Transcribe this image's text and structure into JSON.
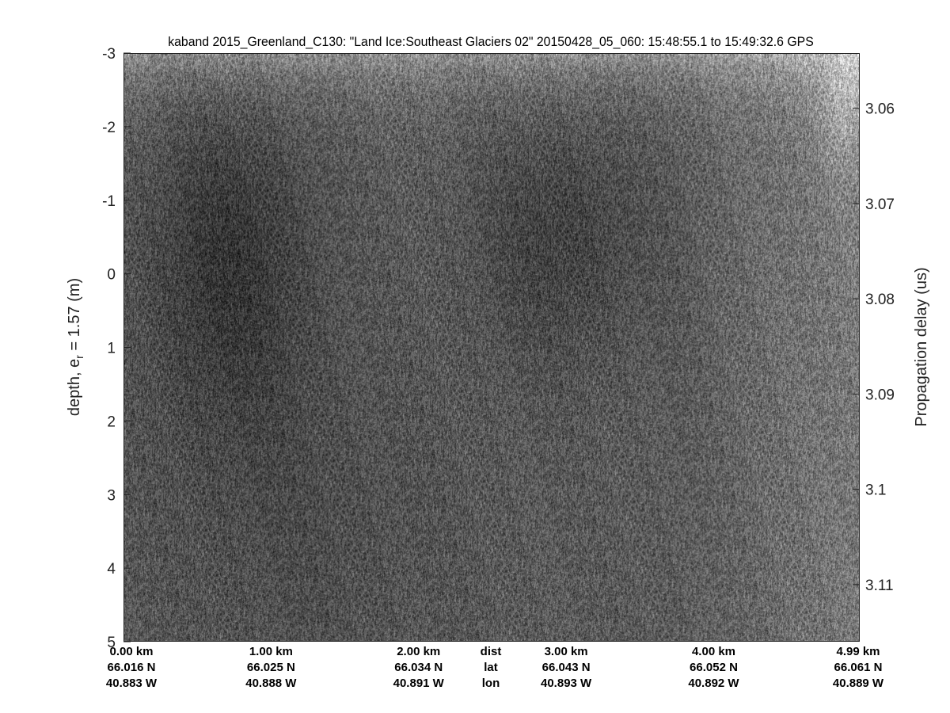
{
  "chart_data": {
    "type": "heatmap",
    "title": "kaband 2015_Greenland_C130: \"Land Ice:Southeast  Glaciers 02\"  20150428_05_060: 15:48:55.1 to 15:49:32.6 GPS",
    "ylabel_left": "depth, e",
    "ylabel_left_sub": "r",
    "ylabel_left_rest": " = 1.57 (m)",
    "ylabel_right": "Propagation delay (us)",
    "y_left_ticks": [
      "-3",
      "-2",
      "-1",
      "0",
      "1",
      "2",
      "3",
      "4",
      "5"
    ],
    "y_left_range": [
      -3,
      5
    ],
    "y_right_ticks": [
      "3.06",
      "3.07",
      "3.08",
      "3.09",
      "3.1",
      "3.11"
    ],
    "y_right_range": [
      3.0542,
      3.116
    ],
    "x_rows": {
      "dist_label": "dist",
      "lat_label": "lat",
      "lon_label": "lon",
      "dist": [
        "0.00 km",
        "1.00 km",
        "2.00 km",
        "3.00 km",
        "4.00 km",
        "4.99 km"
      ],
      "lat": [
        "66.016 N",
        "66.025 N",
        "66.034 N",
        "66.043 N",
        "66.052 N",
        "66.061 N"
      ],
      "lon": [
        "40.883 W",
        "40.888 W",
        "40.891 W",
        "40.893 W",
        "40.892 W",
        "40.889 W"
      ]
    },
    "dist_values_km": [
      0,
      1,
      2,
      3,
      4,
      4.99
    ],
    "dist_range_km": [
      0,
      4.99
    ],
    "colormap": "gray"
  }
}
